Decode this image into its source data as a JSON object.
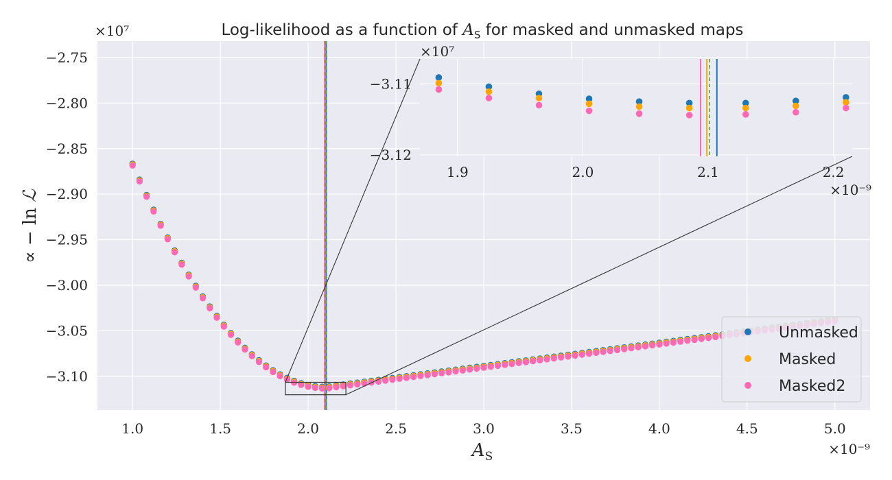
{
  "chart_data": {
    "type": "scatter",
    "title": "Log-likelihood as a function of A_S for masked and unmasked maps",
    "title_parts": [
      "Log-likelihood as a function of ",
      "A",
      "S",
      " for masked and unmasked maps"
    ],
    "xlabel_parts": [
      "A",
      "S"
    ],
    "ylabel_parts": [
      "∝ − ln ",
      "ℒ"
    ],
    "x_multiplier": "×10⁻⁹",
    "y_multiplier": "×10⁷",
    "xlim": [
      0.8,
      5.2
    ],
    "ylim": [
      -3.137,
      -2.732
    ],
    "xticks": [
      1.0,
      1.5,
      2.0,
      2.5,
      3.0,
      3.5,
      4.0,
      4.5,
      5.0
    ],
    "xtick_labels": [
      "1.0",
      "1.5",
      "2.0",
      "2.5",
      "3.0",
      "3.5",
      "4.0",
      "4.5",
      "5.0"
    ],
    "yticks": [
      -2.75,
      -2.8,
      -2.85,
      -2.9,
      -2.95,
      -3.0,
      -3.05,
      -3.1
    ],
    "ytick_labels": [
      "−2.75",
      "−2.80",
      "−2.85",
      "−2.90",
      "−2.95",
      "−3.00",
      "−3.05",
      "−3.10"
    ],
    "grid": true,
    "legend_position": "lower-right",
    "x_start": 1.0,
    "x_step": 0.04,
    "x_count": 101,
    "x_min": 2.1,
    "y_min": -3.1115,
    "left_k": 0.2024,
    "right_k": 0.02548,
    "series": [
      {
        "name": "Unmasked",
        "color": "#1f77b4",
        "offset": 0.0,
        "min_x": 2.103
      },
      {
        "name": "Masked",
        "color": "#ffa500",
        "offset": 0.0008,
        "min_x": 2.099
      },
      {
        "name": "Masked2",
        "color": "#ff69b4",
        "offset": 0.0019,
        "min_x": 2.094
      }
    ],
    "inset": {
      "xlim": [
        1.87,
        2.215
      ],
      "ylim": [
        -3.1202,
        -3.1065
      ],
      "xticks": [
        1.9,
        2.0,
        2.1,
        2.2
      ],
      "xtick_labels": [
        "1.9",
        "2.0",
        "2.1",
        "2.2"
      ],
      "yticks": [
        -3.11,
        -3.12
      ],
      "ytick_labels": [
        "−3.11",
        "−3.12"
      ],
      "x_multiplier": "×10⁻⁹",
      "y_multiplier": "×10⁷",
      "points": {
        "x": [
          1.885,
          1.925,
          1.965,
          2.005,
          2.045,
          2.085,
          2.13,
          2.17,
          2.21
        ],
        "Unmasked": [
          -3.1091,
          -3.1104,
          -3.1114,
          -3.1121,
          -3.1125,
          -3.1127,
          -3.1127,
          -3.1124,
          -3.1119
        ],
        "Masked": [
          -3.1099,
          -3.1111,
          -3.112,
          -3.1128,
          -3.1132,
          -3.1134,
          -3.1134,
          -3.1131,
          -3.1126
        ],
        "Masked2": [
          -3.1108,
          -3.112,
          -3.113,
          -3.1138,
          -3.1142,
          -3.1144,
          -3.1143,
          -3.114,
          -3.1134
        ]
      }
    }
  }
}
